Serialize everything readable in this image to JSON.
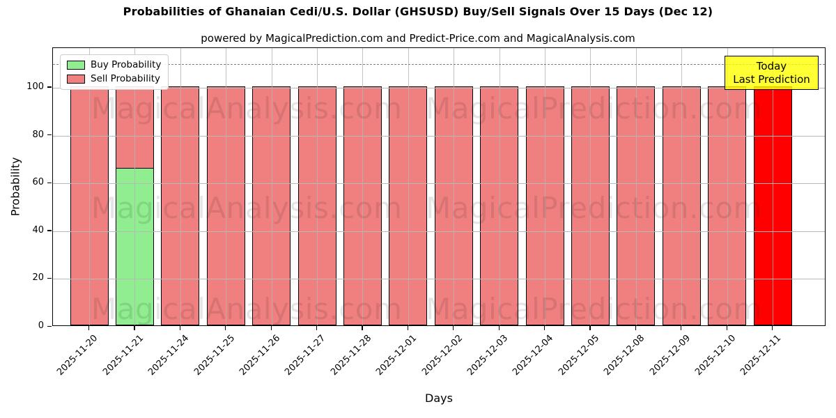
{
  "header": {
    "title": "Probabilities of Ghanaian Cedi/U.S. Dollar (GHSUSD) Buy/Sell Signals Over 15 Days (Dec 12)",
    "subtitle": "powered by MagicalPrediction.com and Predict-Price.com and MagicalAnalysis.com"
  },
  "chart_data": {
    "type": "bar",
    "stacked": true,
    "title": "Probabilities of Ghanaian Cedi/U.S. Dollar (GHSUSD) Buy/Sell Signals Over 15 Days (Dec 12)",
    "subtitle": "powered by MagicalPrediction.com and Predict-Price.com and MagicalAnalysis.com",
    "xlabel": "Days",
    "ylabel": "Probability",
    "ylim": [
      0,
      117
    ],
    "yticks": [
      0,
      20,
      40,
      60,
      80,
      100
    ],
    "grid": true,
    "dashed_threshold_y": 110,
    "categories": [
      "2025-11-20",
      "2025-11-21",
      "2025-11-24",
      "2025-11-25",
      "2025-11-26",
      "2025-11-27",
      "2025-11-28",
      "2025-12-01",
      "2025-12-02",
      "2025-12-03",
      "2025-12-04",
      "2025-12-05",
      "2025-12-08",
      "2025-12-09",
      "2025-12-10",
      "2025-12-11"
    ],
    "series": [
      {
        "name": "Buy Probability",
        "color": "#90EE90",
        "values": [
          0,
          66,
          0,
          0,
          0,
          0,
          0,
          0,
          0,
          0,
          0,
          0,
          0,
          0,
          0,
          0
        ]
      },
      {
        "name": "Sell Probability",
        "color": "#F08080",
        "values": [
          100,
          34,
          100,
          100,
          100,
          100,
          100,
          100,
          100,
          100,
          100,
          100,
          100,
          100,
          100,
          100
        ]
      }
    ],
    "bars": [
      {
        "label": "2025-11-20",
        "segments": [
          {
            "name": "sell",
            "value": 100,
            "color": "#F08080"
          }
        ]
      },
      {
        "label": "2025-11-21",
        "segments": [
          {
            "name": "buy",
            "value": 66,
            "color": "#90EE90"
          },
          {
            "name": "sell",
            "value": 34,
            "color": "#F08080"
          }
        ]
      },
      {
        "label": "2025-11-24",
        "segments": [
          {
            "name": "sell",
            "value": 100,
            "color": "#F08080"
          }
        ]
      },
      {
        "label": "2025-11-25",
        "segments": [
          {
            "name": "sell",
            "value": 100,
            "color": "#F08080"
          }
        ]
      },
      {
        "label": "2025-11-26",
        "segments": [
          {
            "name": "sell",
            "value": 100,
            "color": "#F08080"
          }
        ]
      },
      {
        "label": "2025-11-27",
        "segments": [
          {
            "name": "sell",
            "value": 100,
            "color": "#F08080"
          }
        ]
      },
      {
        "label": "2025-11-28",
        "segments": [
          {
            "name": "sell",
            "value": 100,
            "color": "#F08080"
          }
        ]
      },
      {
        "label": "2025-12-01",
        "segments": [
          {
            "name": "sell",
            "value": 100,
            "color": "#F08080"
          }
        ]
      },
      {
        "label": "2025-12-02",
        "segments": [
          {
            "name": "sell",
            "value": 100,
            "color": "#F08080"
          }
        ]
      },
      {
        "label": "2025-12-03",
        "segments": [
          {
            "name": "sell",
            "value": 100,
            "color": "#F08080"
          }
        ]
      },
      {
        "label": "2025-12-04",
        "segments": [
          {
            "name": "sell",
            "value": 100,
            "color": "#F08080"
          }
        ]
      },
      {
        "label": "2025-12-05",
        "segments": [
          {
            "name": "sell",
            "value": 100,
            "color": "#F08080"
          }
        ]
      },
      {
        "label": "2025-12-08",
        "segments": [
          {
            "name": "sell",
            "value": 100,
            "color": "#F08080"
          }
        ]
      },
      {
        "label": "2025-12-09",
        "segments": [
          {
            "name": "sell",
            "value": 100,
            "color": "#F08080"
          }
        ]
      },
      {
        "label": "2025-12-10",
        "segments": [
          {
            "name": "sell",
            "value": 100,
            "color": "#F08080"
          }
        ]
      },
      {
        "label": "2025-12-11",
        "segments": [
          {
            "name": "today",
            "value": 100,
            "color": "#FF0000"
          }
        ]
      }
    ],
    "legend": {
      "position": "upper left",
      "items": [
        {
          "label": "Buy Probability",
          "color": "#90EE90"
        },
        {
          "label": "Sell Probability",
          "color": "#F08080"
        }
      ]
    },
    "annotation": {
      "lines": [
        "Today",
        "Last Prediction"
      ],
      "bg_color": "#FFFF00",
      "border_color": "#000000"
    },
    "watermarks": [
      "MagicalAnalysis.com",
      "MagicalPrediction.com"
    ],
    "colors": {
      "buy": "#90EE90",
      "sell": "#F08080",
      "today_bar": "#FF0000",
      "grid": "#b4b4b4",
      "dashed_line": "#7f7f7f",
      "bar_edge": "#000000"
    }
  }
}
